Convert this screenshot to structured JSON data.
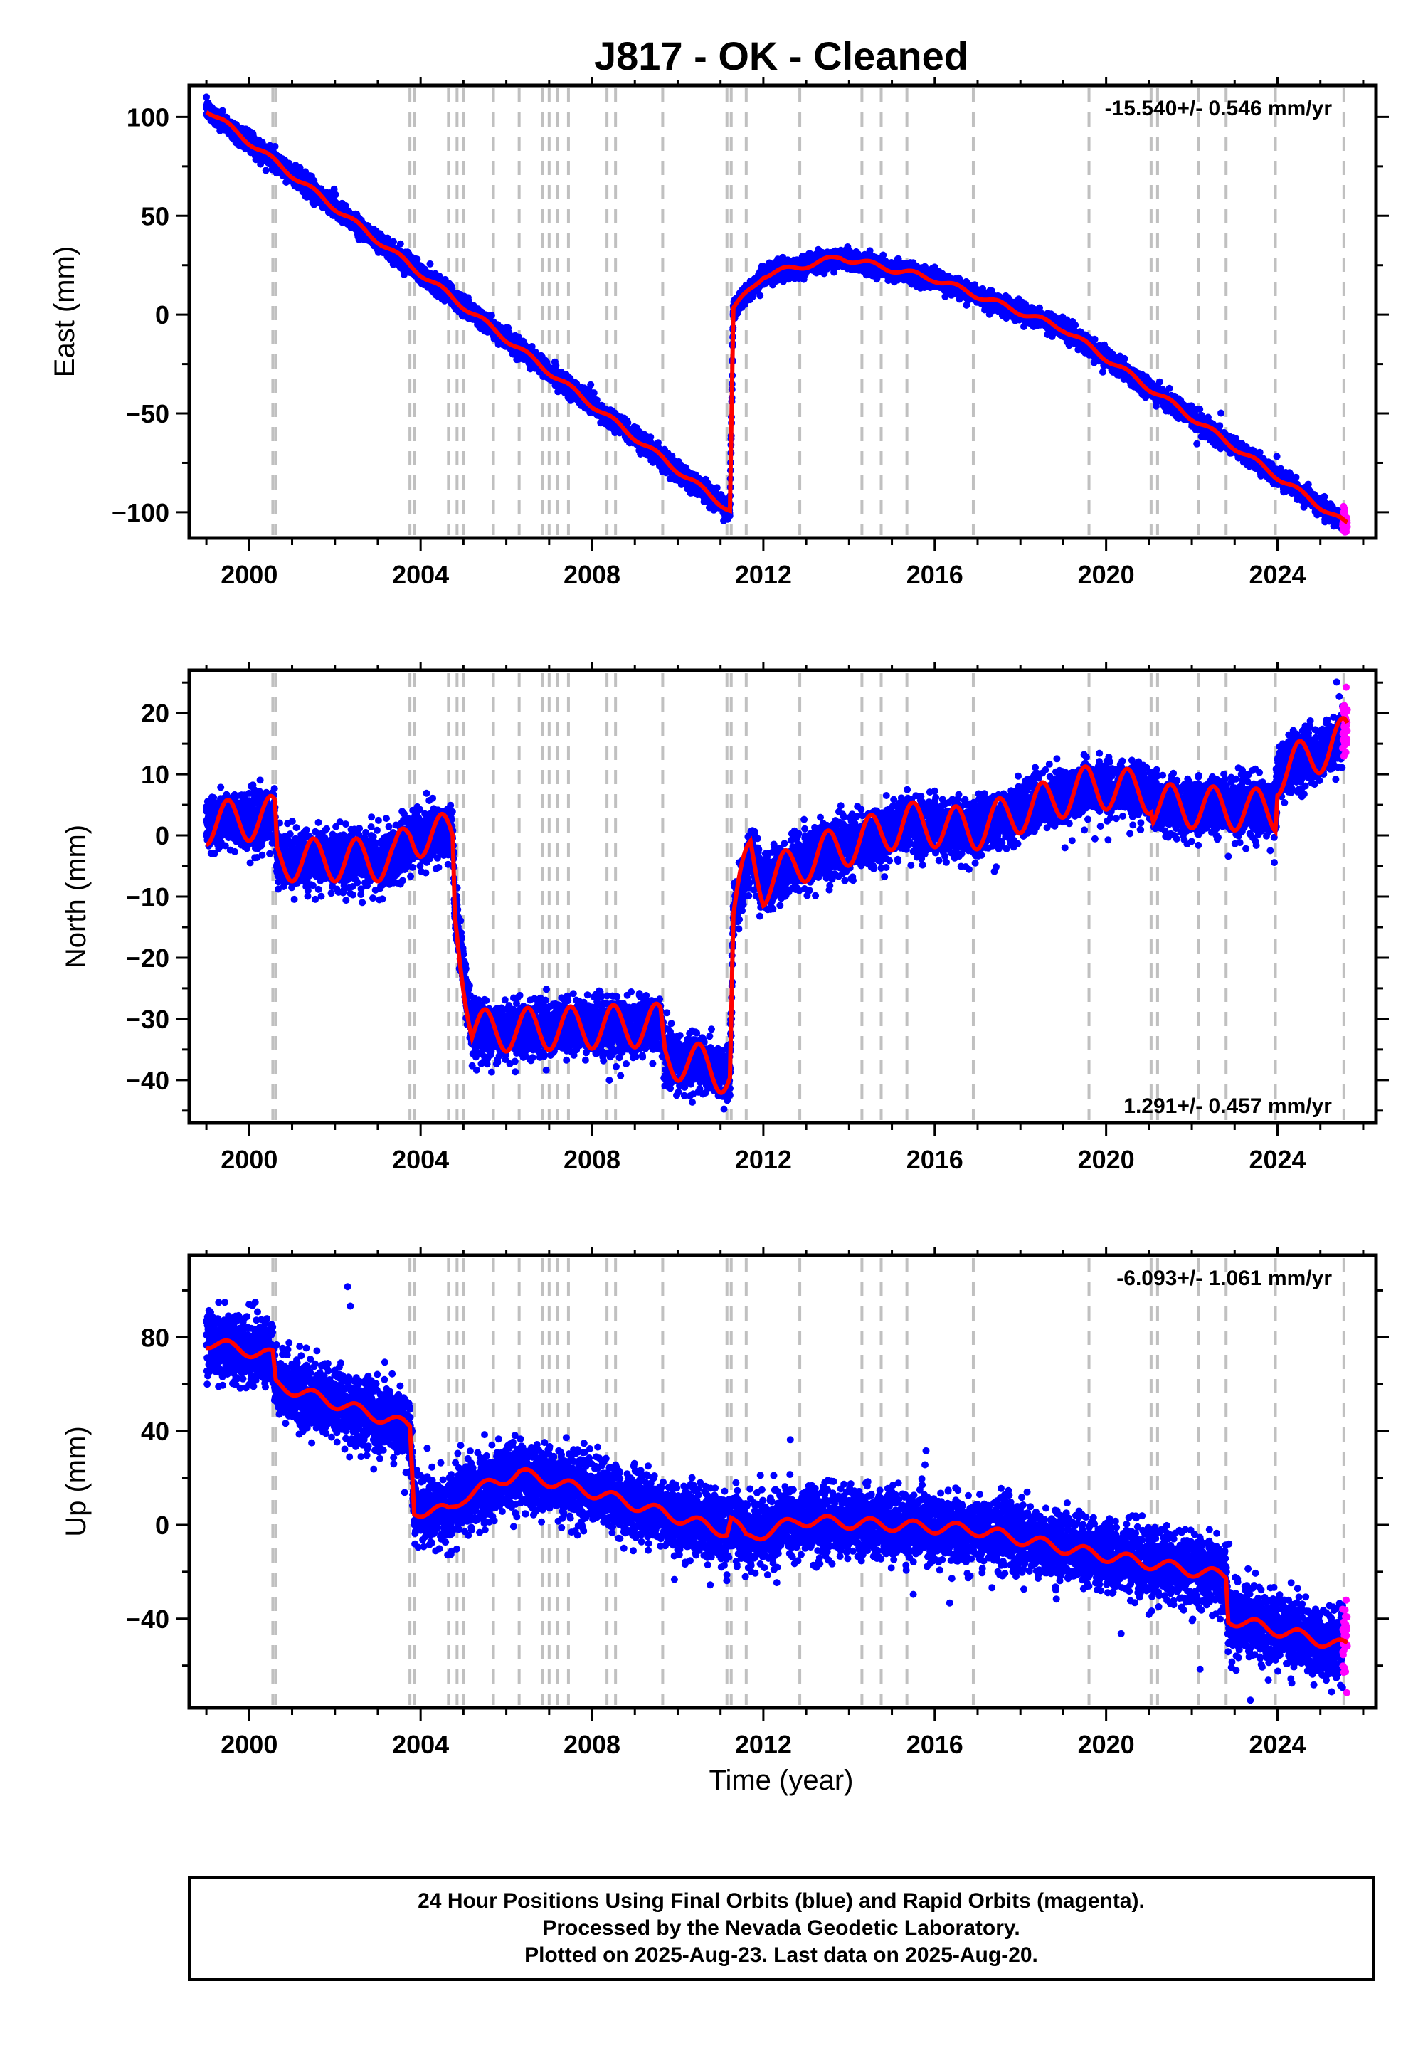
{
  "title": "J817  - OK - Cleaned",
  "xlabel": "Time (year)",
  "colors": {
    "final": "#0000ff",
    "rapid": "#ff00ff",
    "model": "#ff0000",
    "event": "#c0c0c0"
  },
  "footer": {
    "line1": "24 Hour Positions Using Final Orbits (blue) and Rapid Orbits (magenta).",
    "line2": "Processed by the Nevada Geodetic Laboratory.",
    "line3": "Plotted on 2025-Aug-23. Last data on 2025-Aug-20."
  },
  "chart_data": {
    "type": "scatter",
    "xlim": [
      1998.6,
      2026.3
    ],
    "x_ticks": [
      2000,
      2004,
      2008,
      2012,
      2016,
      2020,
      2024
    ],
    "event_lines": [
      2000.55,
      2000.62,
      2003.75,
      2003.85,
      2004.65,
      2004.85,
      2005.0,
      2005.7,
      2006.3,
      2006.85,
      2007.0,
      2007.2,
      2007.45,
      2008.35,
      2008.55,
      2009.65,
      2011.15,
      2011.25,
      2011.6,
      2012.85,
      2014.3,
      2014.75,
      2015.35,
      2016.9,
      2019.6,
      2021.05,
      2021.2,
      2022.15,
      2022.8,
      2023.95,
      2025.55
    ],
    "panels": [
      {
        "ylabel": "East (mm)",
        "ylim": [
          -113,
          116
        ],
        "y_ticks": [
          100,
          50,
          0,
          -50,
          -100
        ],
        "rate_text": "-15.540+/- 0.546 mm/yr",
        "rate_pos": "top-right",
        "seasonal": 1.5,
        "scatter": 2.2,
        "model": [
          [
            1999.0,
            104
          ],
          [
            2011.22,
            -99
          ],
          [
            2011.3,
            3
          ],
          [
            2012.0,
            20
          ],
          [
            2013.8,
            29
          ],
          [
            2016.0,
            18
          ],
          [
            2019.0,
            -7
          ],
          [
            2025.6,
            -106
          ]
        ]
      },
      {
        "ylabel": "North (mm)",
        "ylim": [
          -47,
          27
        ],
        "y_ticks": [
          20,
          10,
          0,
          -10,
          -20,
          -30,
          -40
        ],
        "rate_text": "1.291+/- 0.457 mm/yr",
        "rate_pos": "bottom-right",
        "seasonal": 3.5,
        "scatter": 2.2,
        "model": [
          [
            1999.0,
            2
          ],
          [
            2000.6,
            3
          ],
          [
            2000.65,
            -4
          ],
          [
            2003.4,
            -4
          ],
          [
            2003.75,
            0
          ],
          [
            2004.75,
            0
          ],
          [
            2004.8,
            -12
          ],
          [
            2005.2,
            -32
          ],
          [
            2009.6,
            -31
          ],
          [
            2009.7,
            -36
          ],
          [
            2011.22,
            -39
          ],
          [
            2011.3,
            -14
          ],
          [
            2011.7,
            -2
          ],
          [
            2012.0,
            -8
          ],
          [
            2013.0,
            -4
          ],
          [
            2015.35,
            2
          ],
          [
            2016.9,
            1
          ],
          [
            2019.6,
            8
          ],
          [
            2021.05,
            7
          ],
          [
            2021.1,
            5
          ],
          [
            2023.95,
            4
          ],
          [
            2024.0,
            10
          ],
          [
            2025.6,
            16
          ]
        ]
      },
      {
        "ylabel": "Up (mm)",
        "ylim": [
          -78,
          115
        ],
        "y_ticks": [
          80,
          40,
          0,
          -40
        ],
        "rate_text": "-6.093+/- 1.061 mm/yr",
        "rate_pos": "top-right",
        "seasonal": 2.5,
        "scatter": 7,
        "model": [
          [
            1999.0,
            78
          ],
          [
            2000.55,
            72
          ],
          [
            2000.62,
            60
          ],
          [
            2003.75,
            42
          ],
          [
            2003.85,
            6
          ],
          [
            2004.65,
            6
          ],
          [
            2005.0,
            12
          ],
          [
            2005.7,
            18
          ],
          [
            2006.3,
            22
          ],
          [
            2008.0,
            14
          ],
          [
            2011.15,
            -3
          ],
          [
            2011.25,
            3
          ],
          [
            2011.6,
            -6
          ],
          [
            2012.85,
            2
          ],
          [
            2016.9,
            -2
          ],
          [
            2019.6,
            -12
          ],
          [
            2022.8,
            -22
          ],
          [
            2022.85,
            -40
          ],
          [
            2025.6,
            -52
          ]
        ]
      }
    ]
  }
}
